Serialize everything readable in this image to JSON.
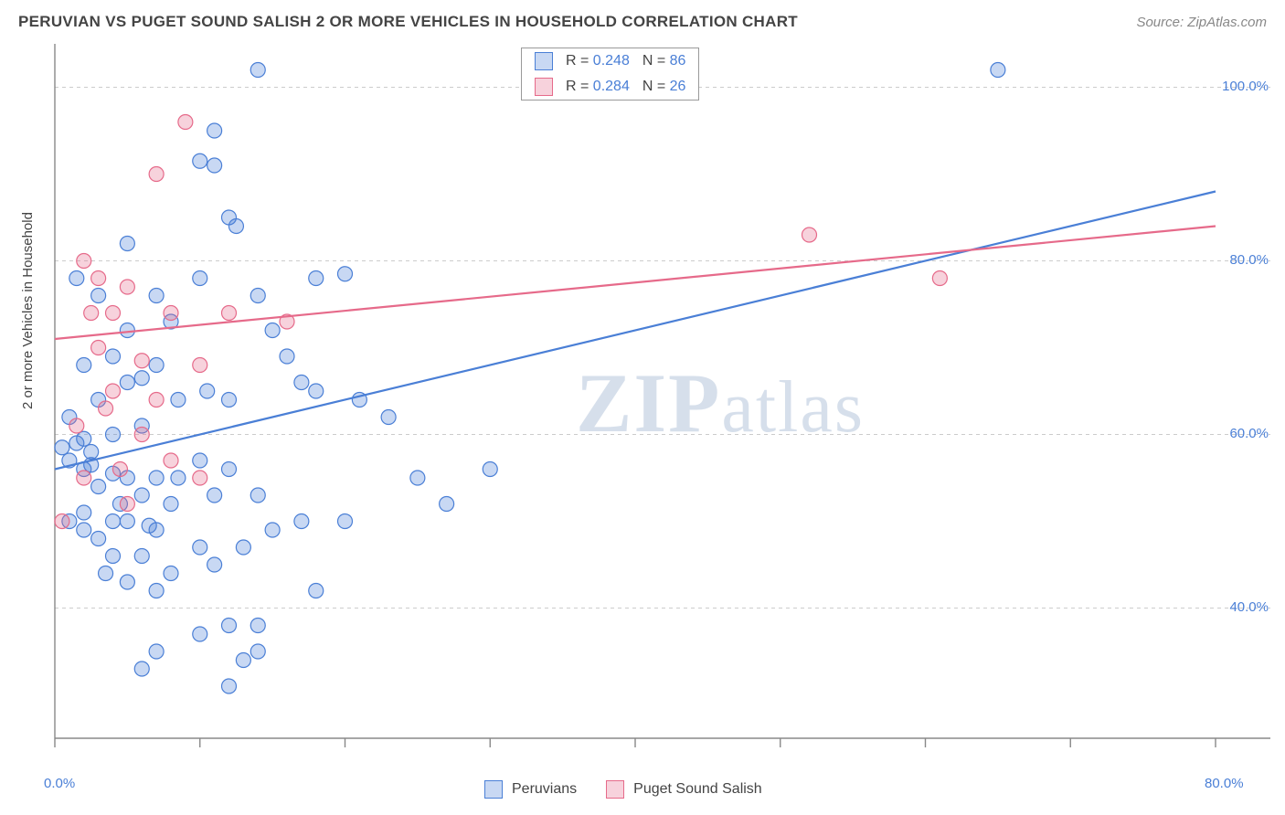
{
  "title": "PERUVIAN VS PUGET SOUND SALISH 2 OR MORE VEHICLES IN HOUSEHOLD CORRELATION CHART",
  "source": "Source: ZipAtlas.com",
  "ylabel": "2 or more Vehicles in Household",
  "watermark": "ZIPatlas",
  "chart": {
    "type": "scatter",
    "background_color": "#ffffff",
    "grid_color": "#cccccc",
    "axis_color": "#888888",
    "xlim": [
      0,
      80
    ],
    "ylim": [
      25,
      105
    ],
    "yticks": [
      40,
      60,
      80,
      100
    ],
    "ytick_labels": [
      "40.0%",
      "60.0%",
      "80.0%",
      "100.0%"
    ],
    "xticks": [
      0,
      10,
      20,
      30,
      40,
      50,
      60,
      70,
      80
    ],
    "xtick_labels": [
      "0.0%",
      "",
      "",
      "",
      "",
      "",
      "",
      "",
      "80.0%"
    ],
    "marker_radius": 8,
    "marker_stroke_width": 1.2,
    "marker_fill_opacity": 0.3,
    "line_width": 2.2
  },
  "series": [
    {
      "name": "Peruvians",
      "color": "#4a7fd6",
      "fill": "rgba(74,127,214,0.30)",
      "r": "0.248",
      "n": "86",
      "trend": {
        "x1": 0,
        "y1": 56,
        "x2": 80,
        "y2": 88
      },
      "points": [
        [
          14,
          102
        ],
        [
          65,
          102
        ],
        [
          11,
          95
        ],
        [
          10,
          91.5
        ],
        [
          11,
          91
        ],
        [
          12,
          85
        ],
        [
          12.5,
          84
        ],
        [
          5,
          82
        ],
        [
          18,
          78
        ],
        [
          20,
          78.5
        ],
        [
          1.5,
          78
        ],
        [
          10,
          78
        ],
        [
          3,
          76
        ],
        [
          7,
          76
        ],
        [
          14,
          76
        ],
        [
          8,
          73
        ],
        [
          5,
          72
        ],
        [
          15,
          72
        ],
        [
          16,
          69
        ],
        [
          4,
          69
        ],
        [
          7,
          68
        ],
        [
          2,
          68
        ],
        [
          6,
          66.5
        ],
        [
          5,
          66
        ],
        [
          17,
          66
        ],
        [
          18,
          65
        ],
        [
          10.5,
          65
        ],
        [
          3,
          64
        ],
        [
          21,
          64
        ],
        [
          8.5,
          64
        ],
        [
          12,
          64
        ],
        [
          1,
          62
        ],
        [
          23,
          62
        ],
        [
          6,
          61
        ],
        [
          4,
          60
        ],
        [
          2,
          59.5
        ],
        [
          1.5,
          59
        ],
        [
          2.5,
          58
        ],
        [
          0.5,
          58.5
        ],
        [
          1,
          57
        ],
        [
          2,
          56
        ],
        [
          4,
          55.5
        ],
        [
          5,
          55
        ],
        [
          7,
          55
        ],
        [
          8.5,
          55
        ],
        [
          10,
          57
        ],
        [
          12,
          56
        ],
        [
          3,
          54
        ],
        [
          6,
          53
        ],
        [
          2.5,
          56.5
        ],
        [
          4.5,
          52
        ],
        [
          8,
          52
        ],
        [
          11,
          53
        ],
        [
          14,
          53
        ],
        [
          17,
          50
        ],
        [
          20,
          50
        ],
        [
          25,
          55
        ],
        [
          30,
          56
        ],
        [
          2,
          51
        ],
        [
          5,
          50
        ],
        [
          6.5,
          49.5
        ],
        [
          7,
          49
        ],
        [
          10,
          47
        ],
        [
          13,
          47
        ],
        [
          15,
          49
        ],
        [
          3,
          48
        ],
        [
          4,
          46
        ],
        [
          6,
          46
        ],
        [
          8,
          44
        ],
        [
          3.5,
          44
        ],
        [
          5,
          43
        ],
        [
          11,
          45
        ],
        [
          7,
          42
        ],
        [
          2,
          49
        ],
        [
          27,
          52
        ],
        [
          4,
          50
        ],
        [
          1,
          50
        ],
        [
          18,
          42
        ],
        [
          12,
          38
        ],
        [
          14,
          38
        ],
        [
          10,
          37
        ],
        [
          6,
          33
        ],
        [
          12,
          31
        ],
        [
          14,
          35
        ],
        [
          7,
          35
        ],
        [
          13,
          34
        ]
      ]
    },
    {
      "name": "Puget Sound Salish",
      "color": "#e66a8a",
      "fill": "rgba(230,106,138,0.30)",
      "r": "0.284",
      "n": "26",
      "trend": {
        "x1": 0,
        "y1": 71,
        "x2": 80,
        "y2": 84
      },
      "points": [
        [
          9,
          96
        ],
        [
          7,
          90
        ],
        [
          52,
          83
        ],
        [
          2,
          80
        ],
        [
          3,
          78
        ],
        [
          5,
          77
        ],
        [
          2.5,
          74
        ],
        [
          4,
          74
        ],
        [
          8,
          74
        ],
        [
          12,
          74
        ],
        [
          16,
          73
        ],
        [
          61,
          78
        ],
        [
          3,
          70
        ],
        [
          6,
          68.5
        ],
        [
          10,
          68
        ],
        [
          4,
          65
        ],
        [
          7,
          64
        ],
        [
          3.5,
          63
        ],
        [
          1.5,
          61
        ],
        [
          6,
          60
        ],
        [
          8,
          57
        ],
        [
          4.5,
          56
        ],
        [
          2,
          55
        ],
        [
          10,
          55
        ],
        [
          5,
          52
        ],
        [
          0.5,
          50
        ]
      ]
    }
  ],
  "legend_bottom": [
    {
      "label": "Peruvians",
      "fill": "rgba(74,127,214,0.30)",
      "stroke": "#4a7fd6"
    },
    {
      "label": "Puget Sound Salish",
      "fill": "rgba(230,106,138,0.30)",
      "stroke": "#e66a8a"
    }
  ]
}
